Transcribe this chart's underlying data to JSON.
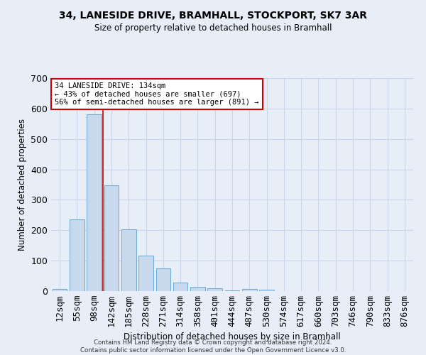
{
  "title": "34, LANESIDE DRIVE, BRAMHALL, STOCKPORT, SK7 3AR",
  "subtitle": "Size of property relative to detached houses in Bramhall",
  "xlabel": "Distribution of detached houses by size in Bramhall",
  "ylabel": "Number of detached properties",
  "footer_line1": "Contains HM Land Registry data © Crown copyright and database right 2024.",
  "footer_line2": "Contains public sector information licensed under the Open Government Licence v3.0.",
  "bar_labels": [
    "12sqm",
    "55sqm",
    "98sqm",
    "142sqm",
    "185sqm",
    "228sqm",
    "271sqm",
    "314sqm",
    "358sqm",
    "401sqm",
    "444sqm",
    "487sqm",
    "530sqm",
    "574sqm",
    "617sqm",
    "660sqm",
    "703sqm",
    "746sqm",
    "790sqm",
    "833sqm",
    "876sqm"
  ],
  "bar_values": [
    7,
    235,
    580,
    348,
    202,
    116,
    74,
    27,
    14,
    9,
    3,
    6,
    5,
    0,
    0,
    0,
    0,
    0,
    0,
    0,
    0
  ],
  "bar_color": "#c8d9ee",
  "bar_edge_color": "#6aaad4",
  "grid_color": "#c8d4e8",
  "background_color": "#e8eef8",
  "vline_x": 2.5,
  "vline_color": "#cc0000",
  "annotation_text": "34 LANESIDE DRIVE: 134sqm\n← 43% of detached houses are smaller (697)\n56% of semi-detached houses are larger (891) →",
  "annotation_box_color": "#ffffff",
  "annotation_box_edge": "#cc0000",
  "ylim": [
    0,
    700
  ],
  "yticks": [
    0,
    100,
    200,
    300,
    400,
    500,
    600,
    700
  ]
}
